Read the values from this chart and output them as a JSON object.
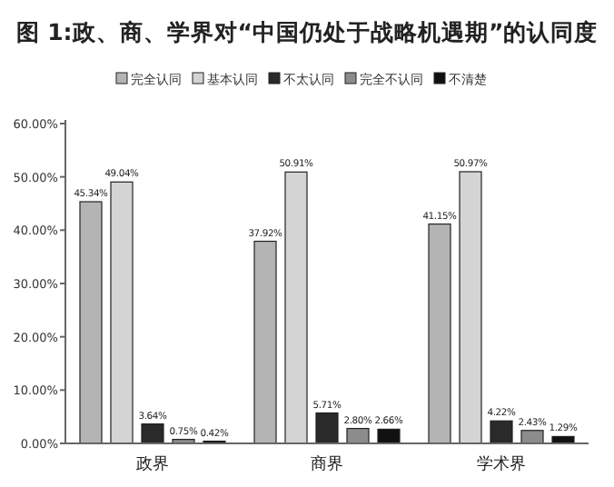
{
  "chart_data": {
    "type": "bar",
    "title": "图 1:政、商、学界对“中国仍处于战略机遇期”的认同度",
    "categories": [
      "政界",
      "商界",
      "学术界"
    ],
    "series": [
      {
        "name": "完全认同",
        "color": "#b4b4b4",
        "values": [
          45.34,
          37.92,
          41.15
        ],
        "value_labels": [
          "45.34%",
          "37.92%",
          "41.15%"
        ]
      },
      {
        "name": "基本认同",
        "color": "#d4d4d4",
        "values": [
          49.04,
          50.91,
          50.97
        ],
        "value_labels": [
          "49.04%",
          "50.91%",
          "50.97%"
        ]
      },
      {
        "name": "不太认同",
        "color": "#2a2a2a",
        "values": [
          3.64,
          5.71,
          4.22
        ],
        "value_labels": [
          "3.64%",
          "5.71%",
          "4.22%"
        ]
      },
      {
        "name": "完全不认同",
        "color": "#8c8c8c",
        "values": [
          0.75,
          2.8,
          2.43
        ],
        "value_labels": [
          "0.75%",
          "2.80%",
          "2.43%"
        ]
      },
      {
        "name": "不清楚",
        "color": "#111111",
        "values": [
          0.42,
          2.66,
          1.29
        ],
        "value_labels": [
          "0.42%",
          "2.66%",
          "1.29%"
        ]
      }
    ],
    "ylim": [
      0,
      60
    ],
    "yticks": [
      {
        "value": 0,
        "label": "0.00%"
      },
      {
        "value": 10,
        "label": "10.00%"
      },
      {
        "value": 20,
        "label": "20.00%"
      },
      {
        "value": 30,
        "label": "30.00%"
      },
      {
        "value": 40,
        "label": "40.00%"
      },
      {
        "value": 50,
        "label": "50.00%"
      },
      {
        "value": 60,
        "label": "60.00%"
      }
    ],
    "legend": "top",
    "grid": false
  }
}
